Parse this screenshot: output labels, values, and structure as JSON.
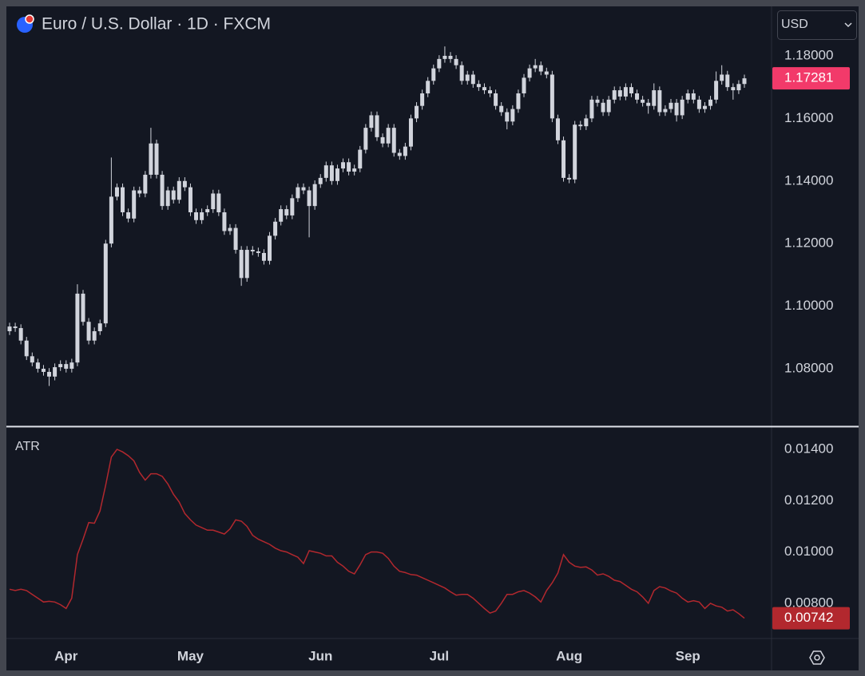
{
  "toolbar": {
    "currency": "USD"
  },
  "chart_data": [
    {
      "type": "candlestick",
      "title": "Euro / U.S. Dollar · 1D · FXCM",
      "color": "#d1d4dc",
      "last_label_color": "#f23a6a",
      "categories": [
        null,
        null,
        null,
        null,
        null,
        null,
        null,
        null,
        null,
        null,
        "Apr",
        null,
        null,
        null,
        null,
        null,
        null,
        null,
        null,
        null,
        null,
        null,
        null,
        null,
        null,
        null,
        null,
        null,
        null,
        null,
        null,
        null,
        "May",
        null,
        null,
        null,
        null,
        null,
        null,
        null,
        null,
        null,
        null,
        null,
        null,
        null,
        null,
        null,
        null,
        null,
        null,
        null,
        null,
        null,
        null,
        "Jun",
        null,
        null,
        null,
        null,
        null,
        null,
        null,
        null,
        null,
        null,
        null,
        null,
        null,
        null,
        null,
        null,
        null,
        null,
        null,
        null,
        "Jul",
        null,
        null,
        null,
        null,
        null,
        null,
        null,
        null,
        null,
        null,
        null,
        null,
        null,
        null,
        null,
        null,
        null,
        null,
        null,
        null,
        null,
        null,
        "Aug",
        null,
        null,
        null,
        null,
        null,
        null,
        null,
        null,
        null,
        null,
        null,
        null,
        null,
        null,
        null,
        null,
        null,
        null,
        null,
        null,
        "Sep",
        null,
        null,
        null,
        null,
        null,
        null,
        null,
        null,
        null,
        null
      ],
      "values": [
        [
          1.092,
          1.0947,
          1.0908,
          1.0935
        ],
        [
          1.0935,
          1.0947,
          1.0918,
          1.093
        ],
        [
          1.093,
          1.0942,
          1.0878,
          1.089
        ],
        [
          1.089,
          1.0902,
          1.0828,
          1.084
        ],
        [
          1.084,
          1.0852,
          1.0808,
          1.082
        ],
        [
          1.082,
          1.0832,
          1.0788,
          1.08
        ],
        [
          1.08,
          1.0812,
          1.0778,
          1.079
        ],
        [
          1.079,
          1.0802,
          1.0745,
          1.0775
        ],
        [
          1.0775,
          1.0817,
          1.0763,
          1.0805
        ],
        [
          1.0805,
          1.0827,
          1.0793,
          1.0815
        ],
        [
          1.0815,
          1.0827,
          1.0788,
          1.08
        ],
        [
          1.08,
          1.0832,
          1.0788,
          1.082
        ],
        [
          1.082,
          1.107,
          1.0808,
          1.104
        ],
        [
          1.104,
          1.1052,
          1.0938,
          1.095
        ],
        [
          1.095,
          1.0962,
          1.0878,
          1.089
        ],
        [
          1.089,
          1.0932,
          1.0878,
          1.092
        ],
        [
          1.092,
          1.0957,
          1.0908,
          1.0945
        ],
        [
          1.0945,
          1.1212,
          1.0933,
          1.12
        ],
        [
          1.12,
          1.1475,
          1.1188,
          1.135
        ],
        [
          1.135,
          1.1392,
          1.1338,
          1.138
        ],
        [
          1.138,
          1.1392,
          1.1288,
          1.13
        ],
        [
          1.13,
          1.1312,
          1.1268,
          1.128
        ],
        [
          1.128,
          1.1382,
          1.1268,
          1.137
        ],
        [
          1.137,
          1.1382,
          1.1348,
          1.136
        ],
        [
          1.136,
          1.1432,
          1.1348,
          1.142
        ],
        [
          1.142,
          1.157,
          1.1408,
          1.152
        ],
        [
          1.152,
          1.1532,
          1.1408,
          1.142
        ],
        [
          1.142,
          1.1432,
          1.1308,
          1.132
        ],
        [
          1.132,
          1.1382,
          1.1308,
          1.137
        ],
        [
          1.137,
          1.1382,
          1.1328,
          1.134
        ],
        [
          1.134,
          1.1412,
          1.1328,
          1.14
        ],
        [
          1.14,
          1.1412,
          1.1368,
          1.138
        ],
        [
          1.138,
          1.1392,
          1.1288,
          1.13
        ],
        [
          1.13,
          1.1312,
          1.1263,
          1.1275
        ],
        [
          1.1275,
          1.1312,
          1.1263,
          1.13
        ],
        [
          1.13,
          1.1322,
          1.1288,
          1.131
        ],
        [
          1.131,
          1.1372,
          1.1298,
          1.136
        ],
        [
          1.136,
          1.1372,
          1.1288,
          1.13
        ],
        [
          1.13,
          1.1312,
          1.1228,
          1.124
        ],
        [
          1.124,
          1.1262,
          1.1228,
          1.125
        ],
        [
          1.125,
          1.1262,
          1.1168,
          1.118
        ],
        [
          1.118,
          1.1192,
          1.1065,
          1.109
        ],
        [
          1.109,
          1.1192,
          1.1078,
          1.118
        ],
        [
          1.118,
          1.1192,
          1.1163,
          1.1175
        ],
        [
          1.1175,
          1.1187,
          1.1158,
          1.117
        ],
        [
          1.117,
          1.1182,
          1.1133,
          1.1145
        ],
        [
          1.1145,
          1.1237,
          1.1133,
          1.1225
        ],
        [
          1.1225,
          1.1282,
          1.1213,
          1.127
        ],
        [
          1.127,
          1.1322,
          1.1258,
          1.131
        ],
        [
          1.131,
          1.1322,
          1.1278,
          1.129
        ],
        [
          1.129,
          1.1357,
          1.1278,
          1.1345
        ],
        [
          1.1345,
          1.1392,
          1.1333,
          1.138
        ],
        [
          1.138,
          1.1392,
          1.1358,
          1.137
        ],
        [
          1.137,
          1.1382,
          1.122,
          1.132
        ],
        [
          1.132,
          1.1402,
          1.1308,
          1.139
        ],
        [
          1.139,
          1.1422,
          1.1378,
          1.141
        ],
        [
          1.141,
          1.1462,
          1.1398,
          1.145
        ],
        [
          1.145,
          1.1462,
          1.1388,
          1.14
        ],
        [
          1.14,
          1.1452,
          1.1388,
          1.144
        ],
        [
          1.144,
          1.1472,
          1.1428,
          1.146
        ],
        [
          1.146,
          1.1472,
          1.1418,
          1.143
        ],
        [
          1.143,
          1.1452,
          1.1418,
          1.144
        ],
        [
          1.144,
          1.1512,
          1.1428,
          1.15
        ],
        [
          1.15,
          1.1582,
          1.1488,
          1.157
        ],
        [
          1.157,
          1.1622,
          1.1558,
          1.161
        ],
        [
          1.161,
          1.1622,
          1.1528,
          1.154
        ],
        [
          1.154,
          1.1552,
          1.1508,
          1.152
        ],
        [
          1.152,
          1.1582,
          1.1508,
          1.157
        ],
        [
          1.157,
          1.1582,
          1.1478,
          1.149
        ],
        [
          1.149,
          1.1502,
          1.1468,
          1.148
        ],
        [
          1.148,
          1.1522,
          1.1468,
          1.151
        ],
        [
          1.151,
          1.1612,
          1.1498,
          1.16
        ],
        [
          1.16,
          1.1652,
          1.1588,
          1.164
        ],
        [
          1.164,
          1.1692,
          1.1628,
          1.168
        ],
        [
          1.168,
          1.1732,
          1.1668,
          1.172
        ],
        [
          1.172,
          1.1772,
          1.1708,
          1.176
        ],
        [
          1.176,
          1.1802,
          1.1748,
          1.179
        ],
        [
          1.179,
          1.183,
          1.1778,
          1.18
        ],
        [
          1.18,
          1.1812,
          1.1778,
          1.179
        ],
        [
          1.179,
          1.1802,
          1.1758,
          1.177
        ],
        [
          1.177,
          1.1782,
          1.1708,
          1.172
        ],
        [
          1.172,
          1.1752,
          1.1708,
          1.174
        ],
        [
          1.174,
          1.1752,
          1.1698,
          1.171
        ],
        [
          1.171,
          1.1722,
          1.1688,
          1.17
        ],
        [
          1.17,
          1.1712,
          1.1678,
          1.169
        ],
        [
          1.169,
          1.1702,
          1.1668,
          1.168
        ],
        [
          1.168,
          1.1692,
          1.1628,
          1.164
        ],
        [
          1.164,
          1.1652,
          1.1608,
          1.162
        ],
        [
          1.162,
          1.1632,
          1.1565,
          1.159
        ],
        [
          1.159,
          1.1642,
          1.1578,
          1.163
        ],
        [
          1.163,
          1.1692,
          1.1618,
          1.168
        ],
        [
          1.168,
          1.1742,
          1.1668,
          1.173
        ],
        [
          1.173,
          1.1772,
          1.1718,
          1.176
        ],
        [
          1.176,
          1.179,
          1.1748,
          1.177
        ],
        [
          1.177,
          1.1782,
          1.1738,
          1.175
        ],
        [
          1.175,
          1.1762,
          1.1728,
          1.174
        ],
        [
          1.174,
          1.1752,
          1.1588,
          1.16
        ],
        [
          1.16,
          1.1612,
          1.1518,
          1.153
        ],
        [
          1.153,
          1.1542,
          1.1398,
          1.141
        ],
        [
          1.141,
          1.1422,
          1.1393,
          1.1405
        ],
        [
          1.1405,
          1.1592,
          1.1393,
          1.158
        ],
        [
          1.158,
          1.1592,
          1.1563,
          1.1575
        ],
        [
          1.1575,
          1.1612,
          1.1563,
          1.16
        ],
        [
          1.16,
          1.1672,
          1.1588,
          1.166
        ],
        [
          1.166,
          1.1672,
          1.1638,
          1.165
        ],
        [
          1.165,
          1.1662,
          1.1608,
          1.162
        ],
        [
          1.162,
          1.1672,
          1.1608,
          1.166
        ],
        [
          1.166,
          1.1702,
          1.1648,
          1.169
        ],
        [
          1.169,
          1.1702,
          1.1658,
          1.167
        ],
        [
          1.167,
          1.1712,
          1.1658,
          1.17
        ],
        [
          1.17,
          1.1712,
          1.1668,
          1.168
        ],
        [
          1.168,
          1.1692,
          1.1648,
          1.166
        ],
        [
          1.166,
          1.1672,
          1.1638,
          1.165
        ],
        [
          1.165,
          1.1662,
          1.1615,
          1.164
        ],
        [
          1.164,
          1.1712,
          1.1628,
          1.169
        ],
        [
          1.169,
          1.1702,
          1.1608,
          1.162
        ],
        [
          1.162,
          1.1642,
          1.1608,
          1.163
        ],
        [
          1.163,
          1.1662,
          1.1618,
          1.165
        ],
        [
          1.165,
          1.1662,
          1.159,
          1.161
        ],
        [
          1.161,
          1.1672,
          1.1598,
          1.166
        ],
        [
          1.166,
          1.1692,
          1.1648,
          1.168
        ],
        [
          1.168,
          1.1692,
          1.1648,
          1.166
        ],
        [
          1.166,
          1.1672,
          1.1618,
          1.163
        ],
        [
          1.163,
          1.1652,
          1.1618,
          1.164
        ],
        [
          1.164,
          1.1672,
          1.1628,
          1.166
        ],
        [
          1.166,
          1.175,
          1.1648,
          1.172
        ],
        [
          1.172,
          1.177,
          1.1708,
          1.174
        ],
        [
          1.174,
          1.1752,
          1.1688,
          1.17
        ],
        [
          1.17,
          1.1712,
          1.166,
          1.169
        ],
        [
          1.169,
          1.1722,
          1.1678,
          1.171
        ],
        [
          1.171,
          1.174,
          1.1698,
          1.17281
        ]
      ],
      "ylim": [
        1.0619,
        1.1958
      ],
      "yticks": [
        {
          "value": 1.08,
          "label": "1.08000"
        },
        {
          "value": 1.1,
          "label": "1.10000"
        },
        {
          "value": 1.12,
          "label": "1.12000"
        },
        {
          "value": 1.14,
          "label": "1.14000"
        },
        {
          "value": 1.16,
          "label": "1.16000"
        },
        {
          "value": 1.18,
          "label": "1.18000"
        }
      ]
    },
    {
      "type": "line",
      "title": "ATR",
      "color": "#b2282e",
      "values": [
        0.00855,
        0.0085,
        0.00855,
        0.0085,
        0.00835,
        0.0082,
        0.00805,
        0.00808,
        0.00805,
        0.00795,
        0.0078,
        0.0082,
        0.0099,
        0.0105,
        0.01115,
        0.01112,
        0.0116,
        0.0126,
        0.0137,
        0.014,
        0.0139,
        0.01375,
        0.01355,
        0.0131,
        0.0128,
        0.01305,
        0.01305,
        0.01295,
        0.01265,
        0.01225,
        0.01195,
        0.0115,
        0.01125,
        0.01105,
        0.01095,
        0.01085,
        0.01085,
        0.01078,
        0.0107,
        0.0109,
        0.01125,
        0.0112,
        0.011,
        0.01065,
        0.0105,
        0.0104,
        0.0103,
        0.01015,
        0.01005,
        0.01,
        0.0099,
        0.0098,
        0.00955,
        0.01005,
        0.01,
        0.00995,
        0.00985,
        0.00985,
        0.0096,
        0.00945,
        0.00925,
        0.00915,
        0.0095,
        0.0099,
        0.01,
        0.01,
        0.00995,
        0.00975,
        0.00945,
        0.00925,
        0.0092,
        0.00912,
        0.0091,
        0.009,
        0.0089,
        0.0088,
        0.0087,
        0.0086,
        0.00845,
        0.00832,
        0.00835,
        0.00835,
        0.0082,
        0.008,
        0.0078,
        0.00762,
        0.0077,
        0.008,
        0.00835,
        0.00835,
        0.00845,
        0.0085,
        0.0084,
        0.00825,
        0.00805,
        0.0085,
        0.0088,
        0.00918,
        0.0099,
        0.0096,
        0.00945,
        0.0094,
        0.00942,
        0.0093,
        0.0091,
        0.00915,
        0.00905,
        0.0089,
        0.00885,
        0.0087,
        0.00855,
        0.00845,
        0.00825,
        0.008,
        0.0085,
        0.00865,
        0.0086,
        0.00848,
        0.0084,
        0.0082,
        0.00805,
        0.0081,
        0.00805,
        0.0078,
        0.008,
        0.0079,
        0.00785,
        0.0077,
        0.00775,
        0.0076,
        0.00742
      ],
      "ylim": [
        0.00663,
        0.01484
      ],
      "yticks": [
        {
          "value": 0.008,
          "label": "0.00800"
        },
        {
          "value": 0.01,
          "label": "0.01000"
        },
        {
          "value": 0.012,
          "label": "0.01200"
        },
        {
          "value": 0.014,
          "label": "0.01400"
        }
      ]
    }
  ]
}
